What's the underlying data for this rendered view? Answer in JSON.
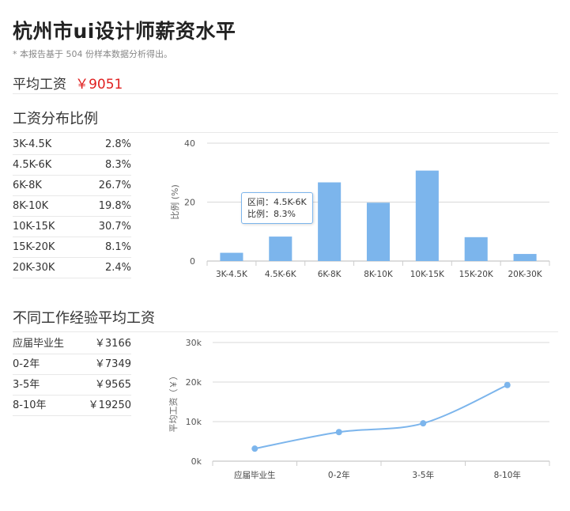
{
  "header": {
    "title": "杭州市ui设计师薪资水平",
    "note": "* 本报告基于 504 份样本数据分析得出。"
  },
  "average": {
    "label": "平均工资",
    "value": "￥9051"
  },
  "distribution": {
    "title": "工资分布比例",
    "rows": [
      {
        "range": "3K-4.5K",
        "pct": "2.8%"
      },
      {
        "range": "4.5K-6K",
        "pct": "8.3%"
      },
      {
        "range": "6K-8K",
        "pct": "26.7%"
      },
      {
        "range": "8K-10K",
        "pct": "19.8%"
      },
      {
        "range": "10K-15K",
        "pct": "30.7%"
      },
      {
        "range": "15K-20K",
        "pct": "8.1%"
      },
      {
        "range": "20K-30K",
        "pct": "2.4%"
      }
    ]
  },
  "experience": {
    "title": "不同工作经验平均工资",
    "rows": [
      {
        "level": "应届毕业生",
        "salary": "￥3166"
      },
      {
        "level": "0-2年",
        "salary": "￥7349"
      },
      {
        "level": "3-5年",
        "salary": "￥9565"
      },
      {
        "level": "8-10年",
        "salary": "￥19250"
      }
    ]
  },
  "tooltip": {
    "line1": "区间：4.5K-6K",
    "line2": "比例：8.3%"
  },
  "colors": {
    "bar": "#7cb5ec",
    "accent_red": "#e02020",
    "grid": "#d8d8d8"
  },
  "chart_data": [
    {
      "type": "bar",
      "categories": [
        "3K-4.5K",
        "4.5K-6K",
        "6K-8K",
        "8K-10K",
        "10K-15K",
        "15K-20K",
        "20K-30K"
      ],
      "values": [
        2.8,
        8.3,
        26.7,
        19.8,
        30.7,
        8.1,
        2.4
      ],
      "ylabel": "比例 (%)",
      "ylim": [
        0,
        40
      ],
      "yticks": [
        "0",
        "20",
        "40"
      ],
      "yticks_values": [
        0,
        20,
        40
      ],
      "grid": true
    },
    {
      "type": "line",
      "categories": [
        "应届毕业生",
        "0-2年",
        "3-5年",
        "8-10年"
      ],
      "values": [
        3166,
        7349,
        9565,
        19250
      ],
      "ylabel": "平均工资（￥）",
      "ylim": [
        0,
        30000
      ],
      "yticks": [
        "0k",
        "10k",
        "20k",
        "30k"
      ],
      "yticks_values": [
        0,
        10000,
        20000,
        30000
      ],
      "grid": true,
      "smooth": true
    }
  ]
}
